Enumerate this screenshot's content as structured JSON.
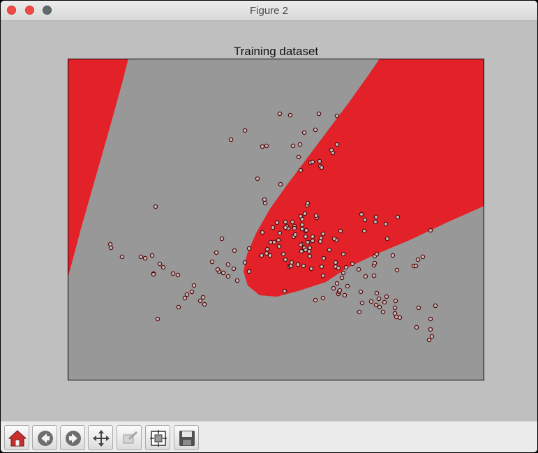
{
  "window": {
    "title": "Figure 2"
  },
  "toolbar": {
    "buttons": [
      {
        "icon": "home-icon"
      },
      {
        "icon": "back-arrow-icon"
      },
      {
        "icon": "forward-arrow-icon"
      },
      {
        "icon": "pan-icon"
      },
      {
        "icon": "zoom-icon"
      },
      {
        "icon": "subplots-config-icon"
      },
      {
        "icon": "save-icon"
      }
    ]
  },
  "chart_data": {
    "type": "scatter",
    "title": "Training dataset",
    "xlabel": "",
    "ylabel": "",
    "grid": false,
    "legend": "none",
    "background_color": "#989898",
    "region_color": "#e22128",
    "marker_face": "#c0c0c0",
    "marker_edge": "#5a0a0a",
    "xlim": [
      0,
      597
    ],
    "ylim": [
      0,
      461
    ],
    "regions": [
      {
        "name": "upper-left",
        "polygon": [
          [
            0,
            0
          ],
          [
            87,
            0
          ],
          [
            78,
            35
          ],
          [
            60,
            100
          ],
          [
            40,
            170
          ],
          [
            20,
            240
          ],
          [
            0,
            315
          ]
        ]
      },
      {
        "name": "ellipse",
        "polygon": [
          [
            447,
            0
          ],
          [
            597,
            0
          ],
          [
            597,
            211
          ],
          [
            545,
            234
          ],
          [
            490,
            260
          ],
          [
            440,
            281
          ],
          [
            400,
            300
          ],
          [
            370,
            320
          ],
          [
            330,
            333
          ],
          [
            300,
            341
          ],
          [
            275,
            339
          ],
          [
            258,
            325
          ],
          [
            252,
            305
          ],
          [
            257,
            280
          ],
          [
            270,
            250
          ],
          [
            290,
            215
          ],
          [
            315,
            180
          ],
          [
            345,
            140
          ],
          [
            375,
            100
          ],
          [
            405,
            60
          ],
          [
            430,
            25
          ]
        ]
      }
    ],
    "x": [
      304,
      319,
      360,
      386,
      234,
      254,
      279,
      285,
      339,
      355,
      380,
      362,
      348,
      386,
      378,
      351,
      331,
      323,
      333,
      364,
      272,
      305,
      343,
      316,
      344,
      334,
      361,
      357,
      282,
      283,
      391,
      385,
      363,
      126,
      356,
      334,
      340,
      336,
      336,
      312,
      322,
      325,
      304,
      302,
      324,
      326,
      336,
      346,
      341,
      347,
      338,
      349,
      344,
      367,
      382,
      375,
      330,
      346,
      384,
      384,
      364,
      309,
      339,
      341,
      321,
      317,
      351,
      341,
      314,
      395,
      336,
      312,
      334,
      399,
      393,
      397,
      386,
      366,
      381,
      312,
      290,
      294,
      319,
      254,
      279,
      347,
      351,
      366,
      342,
      303,
      325,
      300,
      291,
      285,
      278,
      362,
      320,
      335,
      260,
      239,
      238,
      260,
      243,
      230,
      230,
      223,
      221,
      213,
      217,
      207,
      215,
      223,
      194,
      190,
      159,
      168,
      196,
      181,
      178,
      171,
      137,
      132,
      123,
      123,
      151,
      158,
      111,
      121,
      105,
      78,
      61,
      62,
      129,
      286,
      296,
      311,
      355,
      312,
      388,
      408,
      417,
      401,
      395,
      427,
      439,
      443,
      418,
      420,
      454,
      446,
      447,
      457,
      442,
      452,
      470,
      469,
      435,
      503,
      469,
      527,
      520,
      520,
      522,
      518,
      500,
      476,
      471,
      422,
      388,
      366,
      389,
      390,
      439,
      440,
      443,
      466,
      472,
      502,
      496,
      458,
      456,
      441,
      442,
      425,
      421,
      473,
      426,
      520,
      509,
      499,
      440
    ],
    "y": [
      79,
      81,
      79,
      82,
      116,
      103,
      126,
      125,
      106,
      102,
      135,
      154,
      149,
      123,
      131,
      148,
      141,
      125,
      123,
      156,
      172,
      180,
      210,
      243,
      207,
      160,
      147,
      228,
      202,
      207,
      247,
      260,
      257,
      212,
      225,
      226,
      222,
      238,
      230,
      234,
      234,
      240,
      250,
      260,
      255,
      252,
      266,
      263,
      255,
      283,
      297,
      301,
      263,
      286,
      258,
      274,
      295,
      276,
      298,
      292,
      298,
      280,
      271,
      274,
      292,
      298,
      255,
      247,
      240,
      280,
      244,
      242,
      267,
      299,
      314,
      339,
      322,
      311,
      329,
      288,
      282,
      242,
      297,
      292,
      249,
      271,
      261,
      251,
      246,
      269,
      243,
      235,
      263,
      279,
      282,
      262,
      297,
      276,
      272,
      275,
      301,
      305,
      318,
      312,
      295,
      307,
      258,
      278,
      305,
      291,
      302,
      307,
      342,
      347,
      356,
      343,
      352,
      325,
      334,
      338,
      299,
      294,
      308,
      309,
      308,
      310,
      286,
      282,
      284,
      284,
      266,
      271,
      373,
      273,
      263,
      333,
      346,
      242,
      300,
      294,
      302,
      326,
      307,
      312,
      311,
      336,
      363,
      334,
      349,
      344,
      356,
      341,
      353,
      363,
      347,
      365,
      348,
      357,
      357,
      354,
      388,
      373,
      398,
      403,
      385,
      371,
      370,
      350,
      337,
      343,
      334,
      332,
      296,
      283,
      280,
      282,
      303,
      288,
      297,
      258,
      237,
      234,
      227,
      247,
      223,
      227,
      231,
      246,
      284,
      297,
      293
    ]
  }
}
